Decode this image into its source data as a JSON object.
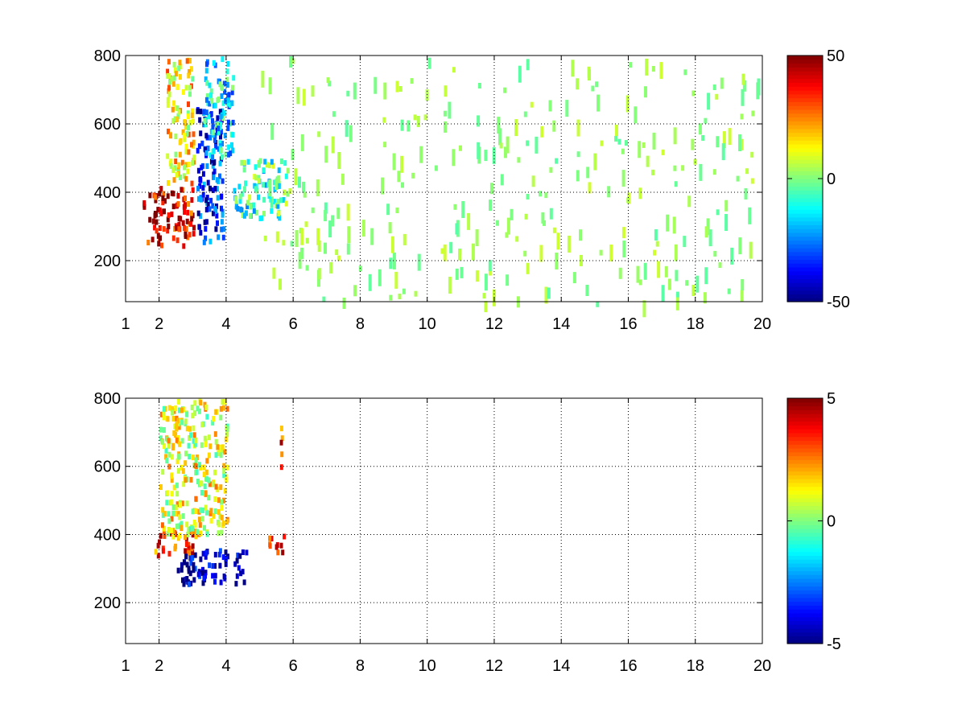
{
  "chart_data": [
    {
      "type": "heatmap",
      "title": "",
      "xlabel": "",
      "ylabel": "",
      "xlim": [
        1,
        20
      ],
      "ylim": [
        80,
        800
      ],
      "x_ticks": [
        1,
        2,
        4,
        6,
        8,
        10,
        12,
        14,
        16,
        18,
        20
      ],
      "x_tick_labels": [
        "1",
        "2",
        "4",
        "6",
        "8",
        "10",
        "12",
        "14",
        "16",
        "18",
        "20"
      ],
      "y_ticks": [
        200,
        400,
        600,
        800
      ],
      "y_tick_labels": [
        "200",
        "400",
        "600",
        "800"
      ],
      "grid": true,
      "grid_style": "dotted",
      "colormap": "jet",
      "clim": [
        -50,
        50
      ],
      "colorbar_ticks": [
        -50,
        0,
        50
      ],
      "colorbar_tick_labels": [
        "-50",
        "0",
        "50"
      ],
      "colorbar_position": "right",
      "features": [
        {
          "x": [
            1.5,
            3.0
          ],
          "y": [
            250,
            420
          ],
          "value": 40
        },
        {
          "x": [
            2.2,
            3.0
          ],
          "y": [
            420,
            800
          ],
          "value": 15
        },
        {
          "x": [
            3.1,
            3.9
          ],
          "y": [
            260,
            650
          ],
          "value": -35
        },
        {
          "x": [
            3.3,
            4.2
          ],
          "y": [
            500,
            800
          ],
          "value": -15
        },
        {
          "x": [
            4.2,
            5.8
          ],
          "y": [
            330,
            500
          ],
          "value": -8
        },
        {
          "x": [
            5.0,
            20.0
          ],
          "y": [
            80,
            800
          ],
          "value": 2,
          "sparse": true
        }
      ]
    },
    {
      "type": "heatmap",
      "title": "",
      "xlabel": "",
      "ylabel": "",
      "xlim": [
        1,
        20
      ],
      "ylim": [
        80,
        800
      ],
      "x_ticks": [
        1,
        2,
        4,
        6,
        8,
        10,
        12,
        14,
        16,
        18,
        20
      ],
      "x_tick_labels": [
        "1",
        "2",
        "4",
        "6",
        "8",
        "10",
        "12",
        "14",
        "16",
        "18",
        "20"
      ],
      "y_ticks": [
        200,
        400,
        600,
        800
      ],
      "y_tick_labels": [
        "200",
        "400",
        "600",
        "800"
      ],
      "grid": true,
      "grid_style": "dotted",
      "colormap": "jet",
      "clim": [
        -5,
        5
      ],
      "colorbar_ticks": [
        -5,
        0,
        5
      ],
      "colorbar_tick_labels": [
        "-5",
        "0",
        "5"
      ],
      "colorbar_position": "right",
      "features": [
        {
          "x": [
            1.8,
            3.0
          ],
          "y": [
            340,
            420
          ],
          "value": 3
        },
        {
          "x": [
            2.0,
            4.0
          ],
          "y": [
            400,
            800
          ],
          "value": 1
        },
        {
          "x": [
            2.5,
            4.6
          ],
          "y": [
            260,
            360
          ],
          "value": -4.5
        },
        {
          "x": [
            5.2,
            5.7
          ],
          "y": [
            350,
            410
          ],
          "value": 4
        },
        {
          "x": [
            5.6,
            5.7
          ],
          "y": [
            560,
            720
          ],
          "value": 3
        }
      ]
    }
  ]
}
